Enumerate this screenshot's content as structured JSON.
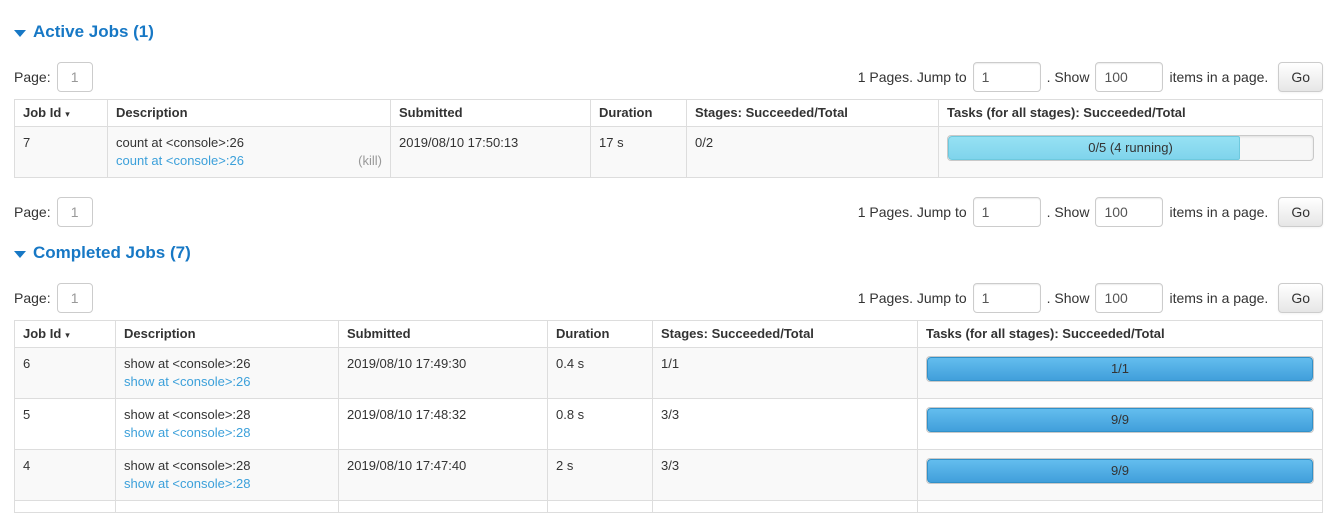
{
  "colors": {
    "heading_blue": "#1778c5",
    "link_blue": "#3ca0da",
    "kill_gray": "#999999",
    "running_bar_top": "#96e1f3",
    "running_bar_bottom": "#7fd4ec",
    "finished_bar_top": "#63bdee",
    "finished_bar_bottom": "#419fdb"
  },
  "icons": {
    "collapse_arrow": "triangle-down",
    "sort_arrow": "▾"
  },
  "pagination": {
    "page_label": "Page:",
    "page_value": "1",
    "pages_text": "1 Pages. Jump to",
    "jump_value": "1",
    "show_text": ". Show",
    "show_value": "100",
    "items_text": "items in a page.",
    "go_label": "Go"
  },
  "columns": {
    "job_id": "Job Id",
    "description": "Description",
    "submitted": "Submitted",
    "duration": "Duration",
    "stages": "Stages: Succeeded/Total",
    "tasks": "Tasks (for all stages): Succeeded/Total"
  },
  "active_section": {
    "title": "Active Jobs (1)",
    "rows": [
      {
        "job_id": "7",
        "description": "count at <console>:26",
        "description_link": "count at <console>:26",
        "kill_label": "(kill)",
        "submitted": "2019/08/10 17:50:13",
        "duration": "17 s",
        "stages": "0/2",
        "tasks_bar": {
          "label": "0/5 (4 running)",
          "percent": 80,
          "status": "running"
        }
      }
    ]
  },
  "completed_section": {
    "title": "Completed Jobs (7)",
    "rows": [
      {
        "job_id": "6",
        "description": "show at <console>:26",
        "description_link": "show at <console>:26",
        "submitted": "2019/08/10 17:49:30",
        "duration": "0.4 s",
        "stages": "1/1",
        "tasks_bar": {
          "label": "1/1",
          "percent": 100,
          "status": "finished"
        }
      },
      {
        "job_id": "5",
        "description": "show at <console>:28",
        "description_link": "show at <console>:28",
        "submitted": "2019/08/10 17:48:32",
        "duration": "0.8 s",
        "stages": "3/3",
        "tasks_bar": {
          "label": "9/9",
          "percent": 100,
          "status": "finished"
        }
      },
      {
        "job_id": "4",
        "description": "show at <console>:28",
        "description_link": "show at <console>:28",
        "submitted": "2019/08/10 17:47:40",
        "duration": "2 s",
        "stages": "3/3",
        "tasks_bar": {
          "label": "9/9",
          "percent": 100,
          "status": "finished"
        }
      }
    ]
  }
}
